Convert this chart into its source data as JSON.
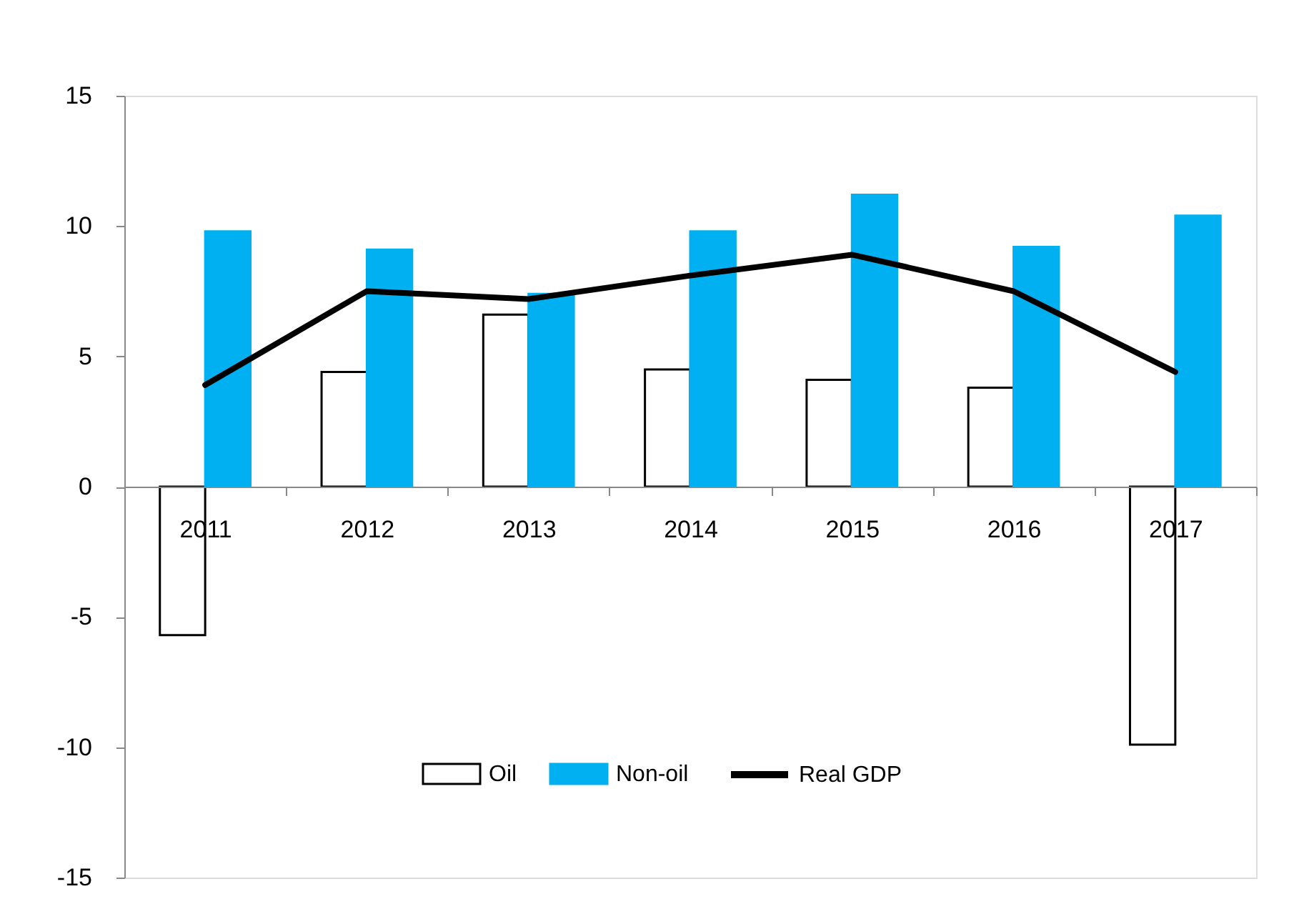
{
  "chart_data": {
    "type": "bar",
    "categories": [
      "2011",
      "2012",
      "2013",
      "2014",
      "2015",
      "2016",
      "2017"
    ],
    "series": [
      {
        "name": "Oil",
        "color": "#ffffff",
        "values": [
          -5.7,
          4.4,
          6.6,
          4.5,
          4.1,
          3.8,
          -9.9
        ]
      },
      {
        "name": "Non-oil",
        "color": "#00b0f0",
        "values": [
          9.8,
          9.1,
          7.4,
          9.8,
          11.2,
          9.2,
          10.4
        ]
      },
      {
        "name": "Real GDP",
        "type": "line",
        "color": "#000000",
        "values": [
          3.9,
          7.5,
          7.2,
          8.1,
          8.9,
          7.5,
          4.4
        ]
      }
    ],
    "ylim": [
      -15,
      15
    ],
    "yticks": [
      -15,
      -10,
      -5,
      0,
      5,
      10,
      15
    ],
    "legend": "bottom",
    "grid": false
  }
}
